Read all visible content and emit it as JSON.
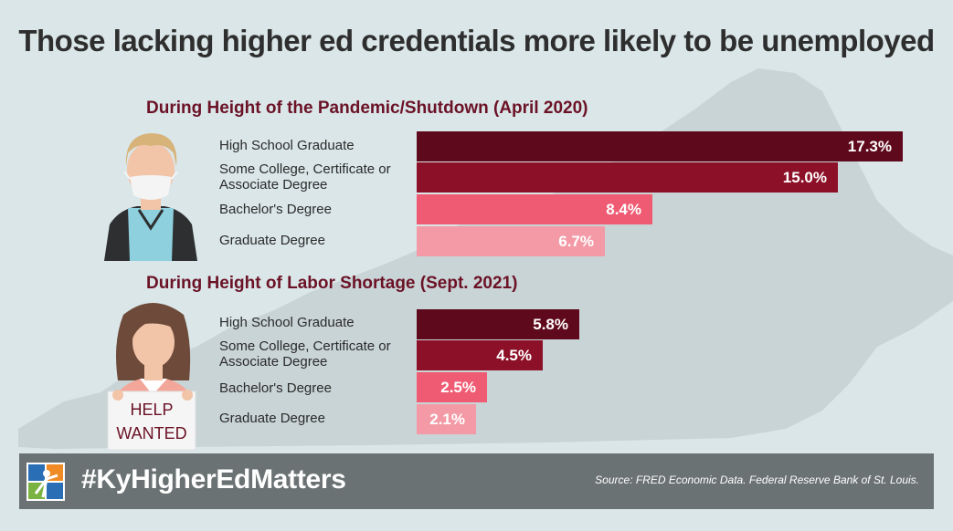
{
  "title": "Those lacking higher ed credentials more likely to be unemployed",
  "colors": {
    "background": "#dae6e8",
    "map": "#c9d4d6",
    "hs": "#5f0a1c",
    "some_college": "#8c1027",
    "bachelors": "#ef5b73",
    "graduate": "#f39aa6",
    "footer": "#6b7273"
  },
  "chart_data": [
    {
      "type": "bar",
      "orientation": "horizontal",
      "title": "During Height of the Pandemic/Shutdown (April 2020)",
      "categories": [
        "High School Graduate",
        "Some College, Certificate or Associate Degree",
        "Bachelor's Degree",
        "Graduate Degree"
      ],
      "values": [
        17.3,
        15.0,
        8.4,
        6.7
      ],
      "value_labels": [
        "17.3%",
        "15.0%",
        "8.4%",
        "6.7%"
      ],
      "unit": "%",
      "xlim": [
        0,
        17.3
      ]
    },
    {
      "type": "bar",
      "orientation": "horizontal",
      "title": "During Height of Labor Shortage (Sept. 2021)",
      "categories": [
        "High School Graduate",
        "Some College, Certificate or Associate Degree",
        "Bachelor's Degree",
        "Graduate Degree"
      ],
      "values": [
        5.8,
        4.5,
        2.5,
        2.1
      ],
      "value_labels": [
        "5.8%",
        "4.5%",
        "2.5%",
        "2.1%"
      ],
      "unit": "%",
      "xlim": [
        0,
        17.3
      ]
    }
  ],
  "sign": {
    "line1": "HELP",
    "line2": "WANTED"
  },
  "footer": {
    "hashtag": "#KyHigherEdMatters",
    "source": "Source: FRED Economic Data. Federal Reserve Bank of St. Louis."
  }
}
